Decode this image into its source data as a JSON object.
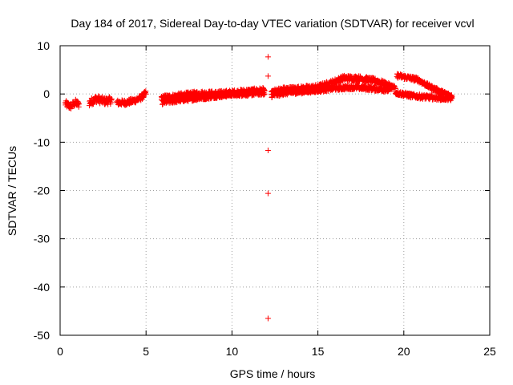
{
  "chart_data": {
    "type": "scatter",
    "title": "Day 184 of 2017, Sidereal Day-to-day VTEC variation (SDTVAR) for receiver vcvl",
    "xlabel": "GPS time / hours",
    "ylabel": "SDTVAR / TECUs",
    "xlim": [
      0,
      25
    ],
    "ylim": [
      -50,
      10
    ],
    "xticks": [
      0,
      5,
      10,
      15,
      20,
      25
    ],
    "yticks": [
      -50,
      -40,
      -30,
      -20,
      -10,
      0,
      10
    ],
    "grid": true,
    "marker": "+",
    "color": "#ff0000",
    "bands": [
      {
        "x": [
          0.3,
          0.6,
          0.9,
          1.1
        ],
        "y": [
          -2.0,
          -2.6,
          -1.8,
          -2.2
        ],
        "width": 1.3
      },
      {
        "x": [
          1.7,
          2.1,
          2.6,
          3.0
        ],
        "y": [
          -1.8,
          -1.0,
          -1.5,
          -1.3
        ],
        "width": 1.5
      },
      {
        "x": [
          3.3,
          3.8,
          4.3,
          4.7,
          5.0
        ],
        "y": [
          -1.8,
          -1.8,
          -1.4,
          -0.8,
          0.2
        ],
        "width": 1.1
      },
      {
        "x": [
          5.9,
          7,
          8,
          9,
          10,
          11,
          11.9
        ],
        "y": [
          -0.9,
          -0.4,
          0.0,
          0.0,
          0.2,
          0.5,
          0.7
        ],
        "width": 1.2
      },
      {
        "x": [
          5.9,
          7,
          8,
          9,
          10,
          11,
          11.9
        ],
        "y": [
          -1.7,
          -1.2,
          -0.8,
          -0.4,
          0.0,
          0.1,
          0.3
        ],
        "width": 1.0
      },
      {
        "x": [
          12.3,
          13,
          14,
          15,
          15.8,
          16.5,
          17.5,
          18.5,
          19.5
        ],
        "y": [
          0.4,
          0.9,
          1.1,
          1.4,
          2.3,
          3.3,
          3.2,
          2.6,
          1.2
        ],
        "width": 1.1
      },
      {
        "x": [
          12.3,
          13,
          14,
          15,
          16,
          17,
          18,
          19.2
        ],
        "y": [
          -0.3,
          0.2,
          0.5,
          0.8,
          1.2,
          1.4,
          1.2,
          0.8
        ],
        "width": 0.9
      },
      {
        "x": [
          19.6,
          20.2,
          20.8,
          21.5,
          22.3,
          22.8
        ],
        "y": [
          3.8,
          3.4,
          3.0,
          1.5,
          0.2,
          -0.5
        ],
        "width": 0.9
      },
      {
        "x": [
          19.5,
          20.5,
          21.5,
          22.5,
          22.8
        ],
        "y": [
          0.3,
          -0.4,
          -0.7,
          -0.9,
          -1.0
        ],
        "width": 0.9
      }
    ],
    "points": [
      {
        "x": 12.1,
        "y": 7.7
      },
      {
        "x": 12.1,
        "y": 3.7
      },
      {
        "x": 12.1,
        "y": -11.7
      },
      {
        "x": 12.1,
        "y": -20.6
      },
      {
        "x": 12.1,
        "y": -46.5
      }
    ]
  }
}
